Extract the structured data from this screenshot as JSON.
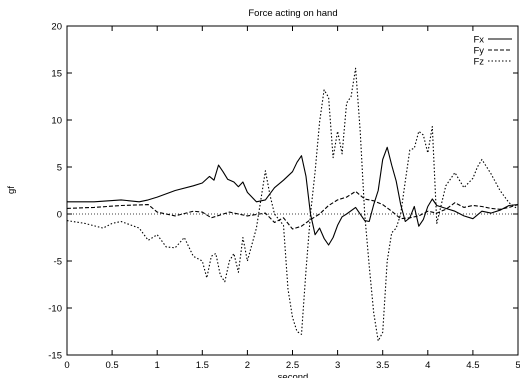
{
  "chart_data": {
    "type": "line",
    "title": "Force acting on hand",
    "xlabel": "second",
    "ylabel": "gf",
    "xlim": [
      0,
      5
    ],
    "ylim": [
      -15,
      20
    ],
    "xticks": [
      0,
      0.5,
      1,
      1.5,
      2,
      2.5,
      3,
      3.5,
      4,
      4.5,
      5
    ],
    "xtick_labels": [
      "0",
      "0.5",
      "1",
      "1.5",
      "2",
      "2.5",
      "3",
      "3.5",
      "4",
      "4.5",
      "5"
    ],
    "yticks": [
      -15,
      -10,
      -5,
      0,
      5,
      10,
      15,
      20
    ],
    "ytick_labels": [
      "-15",
      "-10",
      "-5",
      "0",
      "5",
      "10",
      "15",
      "20"
    ],
    "zero_line": true,
    "grid": false,
    "legend_position": "top-right",
    "series": [
      {
        "name": "Fx",
        "line_style": "solid",
        "x": [
          0,
          0.3,
          0.6,
          0.8,
          0.9,
          1.0,
          1.2,
          1.4,
          1.5,
          1.58,
          1.63,
          1.68,
          1.73,
          1.78,
          1.85,
          1.9,
          1.95,
          2.0,
          2.1,
          2.2,
          2.3,
          2.4,
          2.5,
          2.55,
          2.6,
          2.65,
          2.7,
          2.75,
          2.8,
          2.85,
          2.9,
          2.95,
          3.0,
          3.05,
          3.1,
          3.2,
          3.3,
          3.35,
          3.4,
          3.45,
          3.5,
          3.55,
          3.6,
          3.65,
          3.7,
          3.75,
          3.8,
          3.85,
          3.9,
          3.95,
          4.0,
          4.05,
          4.1,
          4.2,
          4.3,
          4.4,
          4.5,
          4.6,
          4.7,
          4.8,
          4.9,
          5.0
        ],
        "y": [
          1.3,
          1.3,
          1.5,
          1.3,
          1.5,
          1.8,
          2.5,
          3.0,
          3.3,
          4.0,
          3.6,
          5.2,
          4.5,
          3.7,
          3.4,
          2.9,
          3.4,
          2.3,
          1.3,
          1.5,
          2.8,
          3.6,
          4.5,
          5.5,
          6.2,
          4.0,
          0.0,
          -2.2,
          -1.5,
          -2.6,
          -3.3,
          -2.5,
          -1.2,
          -0.3,
          0.0,
          0.7,
          -0.7,
          -0.8,
          1.0,
          2.5,
          5.8,
          7.1,
          5.2,
          3.5,
          1.0,
          -0.8,
          -0.4,
          0.8,
          -1.3,
          -0.6,
          0.8,
          1.6,
          0.9,
          0.6,
          0.3,
          -0.2,
          -0.5,
          0.3,
          0.1,
          0.4,
          0.9,
          1.0
        ]
      },
      {
        "name": "Fy",
        "line_style": "dashed",
        "x": [
          0,
          0.3,
          0.6,
          0.9,
          1.0,
          1.2,
          1.4,
          1.5,
          1.6,
          1.8,
          2.0,
          2.2,
          2.3,
          2.4,
          2.5,
          2.6,
          2.7,
          2.8,
          2.9,
          3.0,
          3.1,
          3.2,
          3.3,
          3.4,
          3.5,
          3.6,
          3.7,
          3.8,
          3.9,
          4.0,
          4.1,
          4.2,
          4.3,
          4.4,
          4.5,
          4.6,
          4.7,
          4.8,
          4.9,
          5.0
        ],
        "y": [
          0.6,
          0.7,
          0.9,
          1.0,
          0.2,
          -0.2,
          0.3,
          0.2,
          -0.4,
          0.2,
          -0.2,
          0.1,
          -0.9,
          -0.4,
          -1.6,
          -1.3,
          -0.6,
          0.0,
          0.9,
          1.5,
          1.8,
          2.4,
          1.6,
          1.4,
          1.0,
          0.3,
          -0.5,
          -0.4,
          -0.2,
          0.3,
          0.1,
          0.5,
          1.2,
          0.7,
          0.9,
          0.8,
          0.6,
          0.5,
          0.7,
          1.0
        ]
      },
      {
        "name": "Fz",
        "line_style": "dotted",
        "x": [
          0,
          0.2,
          0.4,
          0.5,
          0.6,
          0.8,
          0.9,
          1.0,
          1.1,
          1.2,
          1.3,
          1.4,
          1.5,
          1.55,
          1.6,
          1.65,
          1.7,
          1.75,
          1.8,
          1.85,
          1.9,
          1.95,
          2.0,
          2.1,
          2.2,
          2.25,
          2.3,
          2.4,
          2.45,
          2.5,
          2.55,
          2.6,
          2.65,
          2.7,
          2.75,
          2.8,
          2.85,
          2.9,
          2.95,
          3.0,
          3.05,
          3.1,
          3.15,
          3.2,
          3.25,
          3.3,
          3.35,
          3.4,
          3.45,
          3.5,
          3.55,
          3.6,
          3.65,
          3.7,
          3.75,
          3.8,
          3.85,
          3.9,
          3.95,
          4.0,
          4.05,
          4.1,
          4.2,
          4.3,
          4.4,
          4.5,
          4.55,
          4.6,
          4.7,
          4.8,
          4.9,
          5.0
        ],
        "y": [
          -0.7,
          -1.0,
          -1.5,
          -1.0,
          -0.8,
          -1.5,
          -2.8,
          -2.2,
          -3.5,
          -3.6,
          -2.5,
          -4.5,
          -5.0,
          -6.8,
          -4.5,
          -4.2,
          -6.5,
          -7.2,
          -5.0,
          -4.2,
          -6.2,
          -2.5,
          -5.0,
          -1.5,
          4.6,
          2.0,
          0.0,
          -1.2,
          -8.0,
          -11.0,
          -12.5,
          -12.8,
          -6.0,
          0.0,
          4.5,
          9.8,
          13.2,
          12.4,
          6.0,
          8.8,
          6.4,
          11.8,
          12.5,
          15.5,
          8.8,
          0.0,
          -5.5,
          -10.5,
          -13.5,
          -12.6,
          -5.0,
          -2.0,
          -1.5,
          0.0,
          3.5,
          6.8,
          7.0,
          8.8,
          8.4,
          6.5,
          9.3,
          -1.0,
          3.0,
          4.4,
          2.8,
          3.8,
          5.0,
          5.8,
          4.3,
          2.5,
          1.2,
          0.5
        ]
      }
    ]
  }
}
